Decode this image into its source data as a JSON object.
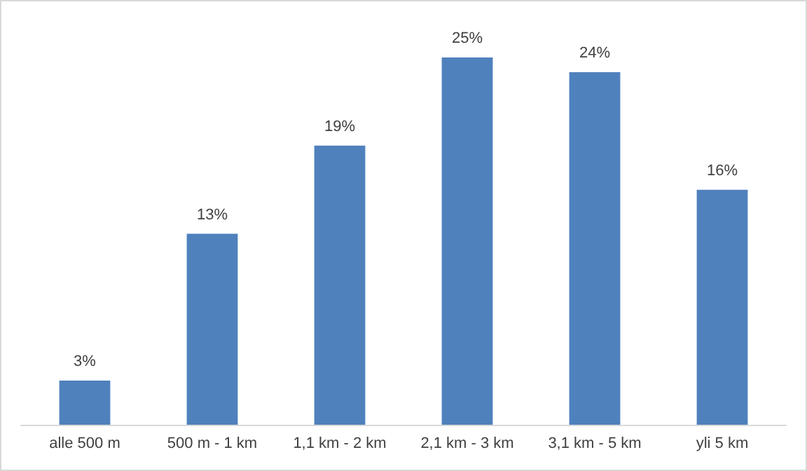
{
  "chart_data": {
    "type": "bar",
    "categories": [
      "alle 500 m",
      "500 m - 1 km",
      "1,1 km - 2 km",
      "2,1 km - 3 km",
      "3,1 km - 5 km",
      "yli 5 km"
    ],
    "values": [
      3,
      13,
      19,
      25,
      24,
      16
    ],
    "value_labels": [
      "3%",
      "13%",
      "19%",
      "25%",
      "24%",
      "16%"
    ],
    "color": "#4f81bd"
  }
}
